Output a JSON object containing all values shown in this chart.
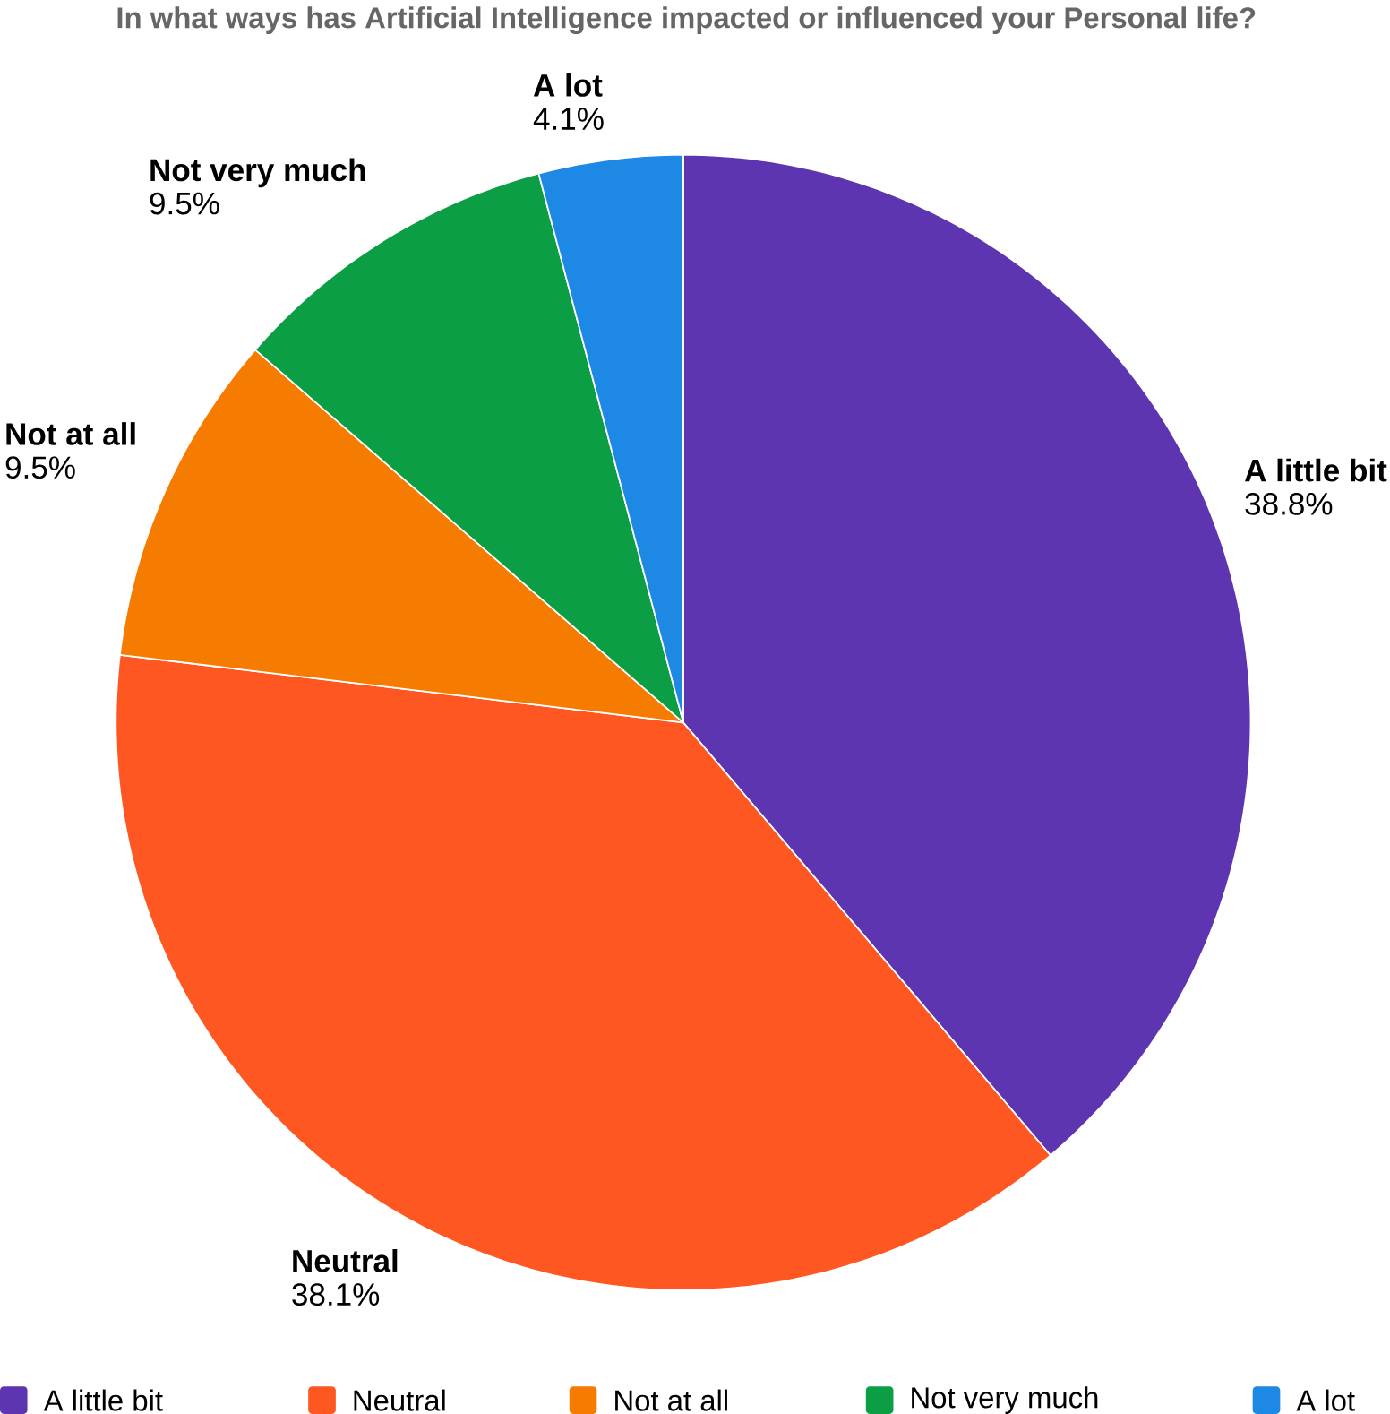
{
  "chart_data": {
    "type": "pie",
    "title": "In what ways has Artificial Intelligence impacted or influenced your Personal life?",
    "categories": [
      "A little bit",
      "Neutral",
      "Not at all",
      "Not very much",
      "A lot"
    ],
    "values": [
      38.8,
      38.1,
      9.5,
      9.5,
      4.1
    ],
    "value_labels": [
      "38.8%",
      "38.1%",
      "9.5%",
      "9.5%",
      "4.1%"
    ],
    "colors": [
      "#5e35b1",
      "#ff5722",
      "#f57c00",
      "#0b9e45",
      "#1e88e5"
    ],
    "legend": "bottom"
  }
}
